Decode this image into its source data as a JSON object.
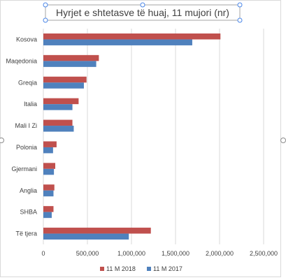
{
  "chart_data": {
    "type": "bar",
    "orientation": "horizontal",
    "title": "Hyrjet e shtetasve të huaj, 11 mujori (nr)",
    "categories": [
      "Kosova",
      "Maqedonia",
      "Greqia",
      "Italia",
      "Mali I Zi",
      "Polonia",
      "Gjermani",
      "Anglia",
      "SHBA",
      "Të tjera"
    ],
    "series": [
      {
        "name": "11 M 2018",
        "color": "#C0504D",
        "values": [
          2010000,
          630000,
          490000,
          400000,
          330000,
          150000,
          135000,
          125000,
          115000,
          1220000
        ]
      },
      {
        "name": "11 M 2017",
        "color": "#4F81BD",
        "values": [
          1690000,
          600000,
          460000,
          330000,
          345000,
          110000,
          120000,
          115000,
          95000,
          970000
        ]
      }
    ],
    "xlim": [
      0,
      2500000
    ],
    "xticks": [
      "0",
      "500,000",
      "1,000,000",
      "1,500,000",
      "2,000,000",
      "2,500,000"
    ],
    "grid": true,
    "legend": "bottom"
  },
  "colors": {
    "gridline": "#D9D9D9",
    "text": "#404040",
    "selection_handle": "#4A86E8"
  }
}
